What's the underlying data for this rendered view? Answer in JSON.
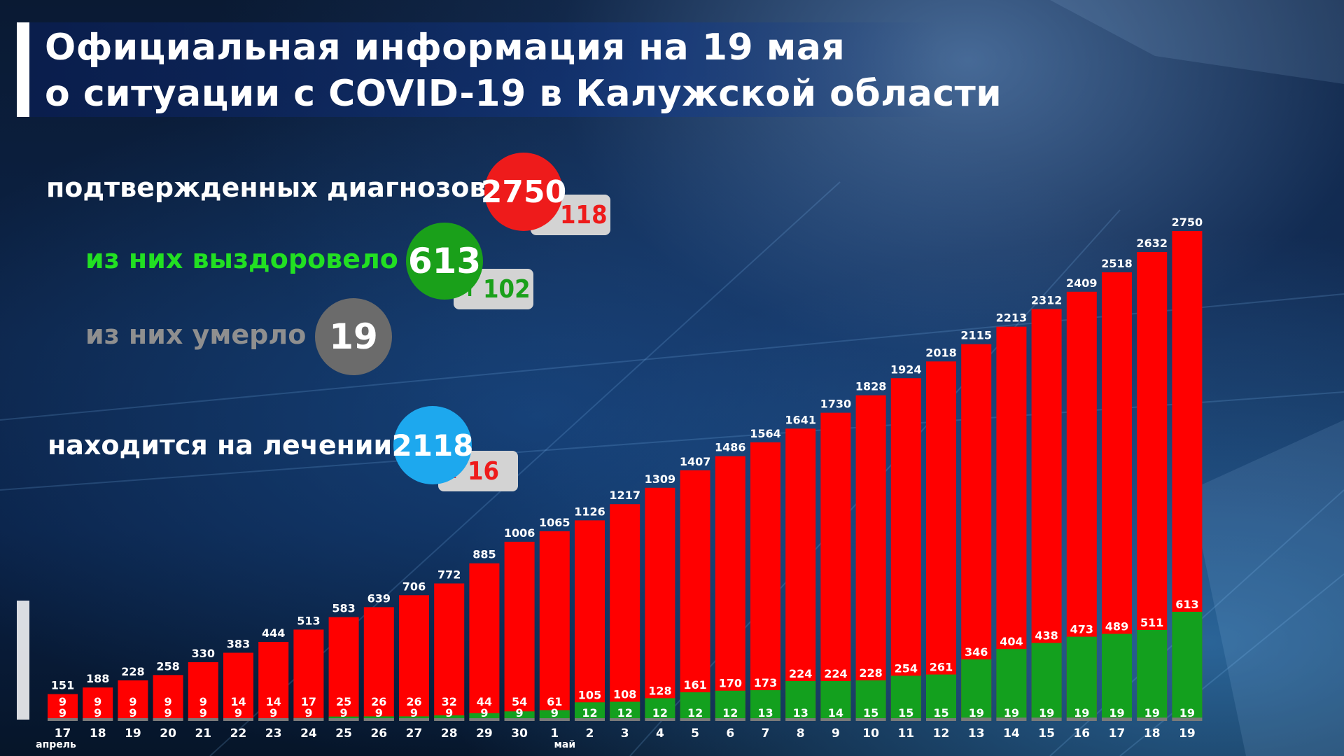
{
  "header": {
    "title_line1": "Официальная информация на 19 мая",
    "title_line2": "о ситуации с COVID-19 в Калужской области"
  },
  "stats": {
    "confirmed": {
      "label": "подтвержденных диагнозов",
      "value": "2750",
      "delta": "118",
      "color": "#ee1b1b"
    },
    "recovered": {
      "label": "из них выздоровело",
      "value": "613",
      "delta": "102",
      "color": "#1aa01a"
    },
    "deaths": {
      "label": "из них умерло",
      "value": "19",
      "color": "#6b6b6b"
    },
    "treatment": {
      "label": "находится на лечении",
      "value": "2118",
      "delta": "16",
      "color": "#1da8ee"
    }
  },
  "chart_data": {
    "type": "bar",
    "month_labels": [
      {
        "index": 0,
        "label": "апрель"
      },
      {
        "index": 14,
        "label": "май"
      }
    ],
    "categories": [
      "17",
      "18",
      "19",
      "20",
      "21",
      "22",
      "23",
      "24",
      "25",
      "26",
      "27",
      "28",
      "29",
      "30",
      "1",
      "2",
      "3",
      "4",
      "5",
      "6",
      "7",
      "8",
      "9",
      "10",
      "11",
      "12",
      "13",
      "14",
      "15",
      "16",
      "17",
      "18",
      "19"
    ],
    "series": [
      {
        "colorHex": "#ff0000",
        "values": [
          151,
          188,
          228,
          258,
          330,
          383,
          444,
          513,
          583,
          639,
          706,
          772,
          885,
          1006,
          1065,
          1126,
          1217,
          1309,
          1407,
          1486,
          1564,
          1641,
          1730,
          1828,
          1924,
          2018,
          2115,
          2213,
          2312,
          2409,
          2518,
          2632,
          2750
        ]
      },
      {
        "colorHex": "#13a01e",
        "values": [
          9,
          9,
          9,
          9,
          9,
          14,
          14,
          17,
          25,
          26,
          26,
          32,
          44,
          54,
          61,
          105,
          108,
          128,
          161,
          170,
          173,
          224,
          224,
          228,
          254,
          261,
          346,
          404,
          438,
          473,
          489,
          511,
          613
        ]
      },
      {
        "colorHex": "#7a7a7a",
        "values": [
          9,
          9,
          9,
          9,
          9,
          9,
          9,
          9,
          9,
          9,
          9,
          9,
          9,
          9,
          9,
          12,
          12,
          12,
          12,
          12,
          13,
          13,
          14,
          15,
          15,
          15,
          19,
          19,
          19,
          19,
          19,
          19,
          19
        ]
      }
    ],
    "ylim": [
      0,
      2750
    ]
  }
}
